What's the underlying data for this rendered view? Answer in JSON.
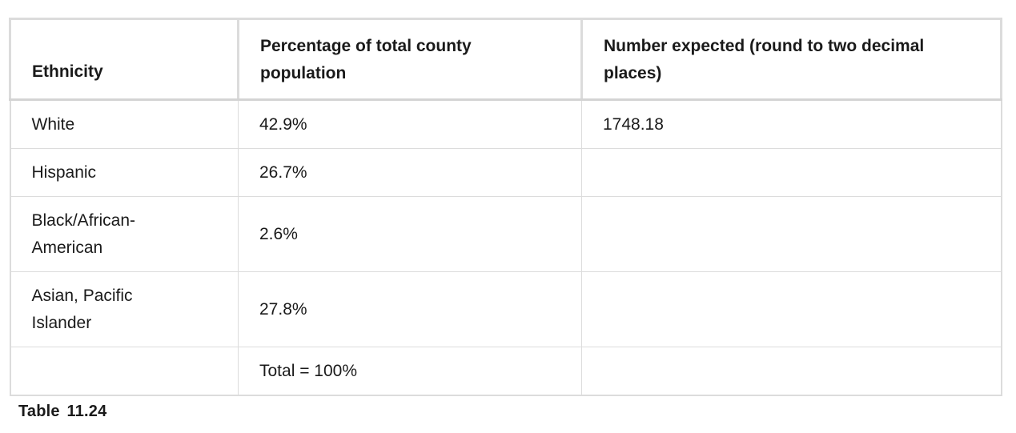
{
  "table": {
    "headers": [
      "Ethnicity",
      "Percentage of total county population",
      "Number expected (round to two decimal places)"
    ],
    "rows": [
      [
        "White",
        "42.9%",
        "1748.18"
      ],
      [
        "Hispanic",
        "26.7%",
        ""
      ],
      [
        "Black/African-American",
        "2.6%",
        ""
      ],
      [
        "Asian, Pacific Islander",
        "27.8%",
        ""
      ],
      [
        "",
        "Total = 100%",
        ""
      ]
    ]
  },
  "caption": "Table  11.24"
}
